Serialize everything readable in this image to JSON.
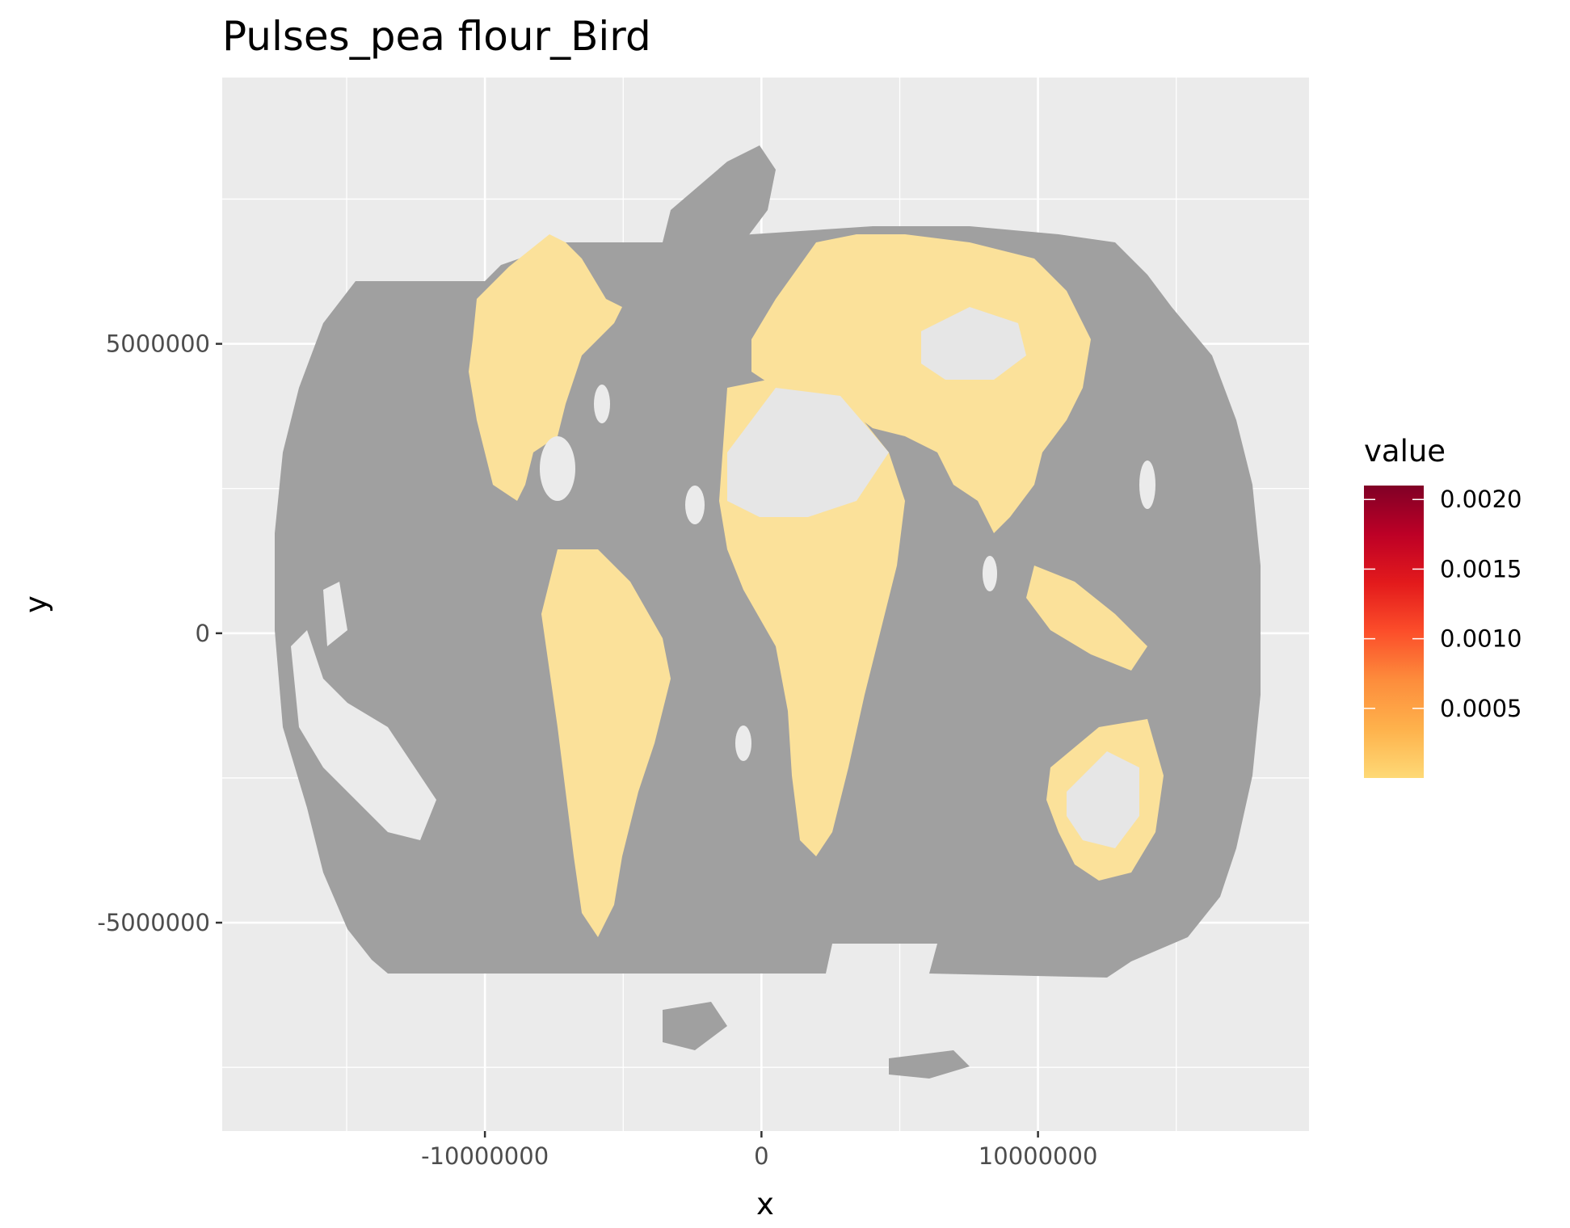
{
  "chart_data": {
    "type": "heatmap",
    "title": "Pulses_pea flour_Bird",
    "xlabel": "x",
    "ylabel": "y",
    "x_ticks": [
      -10000000,
      0,
      10000000
    ],
    "x_tick_labels": [
      "-10000000",
      "0",
      "10000000"
    ],
    "y_ticks": [
      5000000,
      0,
      -5000000
    ],
    "y_tick_labels": [
      "5000000",
      "0",
      "-5000000"
    ],
    "xlim": [
      -19500000,
      19800000
    ],
    "ylim": [
      -8600000,
      9600000
    ],
    "grid": true,
    "panel_background": "#ebebeb",
    "land_no_data_color": "#a0a0a0",
    "land_low_value_color": "#fbe19a",
    "legend": {
      "title": "value",
      "position": "right",
      "range": [
        0,
        0.0021
      ],
      "ticks": [
        0.0005,
        0.001,
        0.0015,
        0.002
      ],
      "tick_labels": [
        "0.0005",
        "0.0010",
        "0.0015",
        "0.0020"
      ],
      "colors": [
        "#fed976",
        "#feb24c",
        "#fd8d3c",
        "#fc4e2a",
        "#e31a1c",
        "#bd0026",
        "#800026"
      ]
    }
  }
}
